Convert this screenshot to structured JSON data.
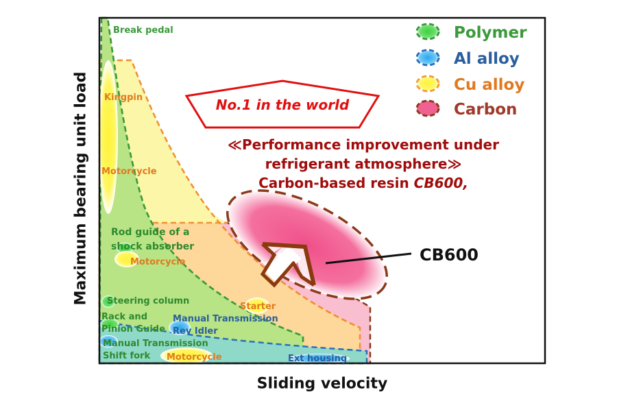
{
  "axes": {
    "y_label": "Maximum bearing unit load",
    "x_label": "Sliding velocity"
  },
  "legend": [
    {
      "label": "Polymer",
      "color": "#3a9a3a",
      "fill": "#5dd65d"
    },
    {
      "label": "Al alloy",
      "color": "#2a70b8",
      "fill": "#35a8e8"
    },
    {
      "label": "Cu alloy",
      "color": "#e08a20",
      "fill": "#ffee40"
    },
    {
      "label": "Carbon",
      "color": "#8a3a1a",
      "fill": "#f06090"
    }
  ],
  "badge": {
    "text": "No.1 in the world",
    "color": "#e01010"
  },
  "headline": {
    "line1": "≪Performance improvement under",
    "line2": "refrigerant atmosphere≫",
    "line3": "Carbon-based resin",
    "line3_emph": "CB600,",
    "color": "#a00c0c"
  },
  "callout": "CB600",
  "applications": {
    "break_pedal": "Break pedal",
    "kingpin": "Kingpin",
    "motorcycle_1": "Motorcycle",
    "rod_guide_1": "Rod guide of a",
    "rod_guide_2": "shock absorber",
    "motorcycle_2": "Motorcycle",
    "steering_column": "Steering column",
    "starter": "Starter",
    "rack_1": "Rack and",
    "rack_2": "Pinion Guide",
    "manual_trans_1": "Manual Transmission",
    "rev_idler": "Rev Idler",
    "manual_trans_2": "Manual Transmission",
    "shift_fork": "Shift fork",
    "motorcycle_3": "Motorcycle",
    "ext_housing": "Ext housing"
  }
}
